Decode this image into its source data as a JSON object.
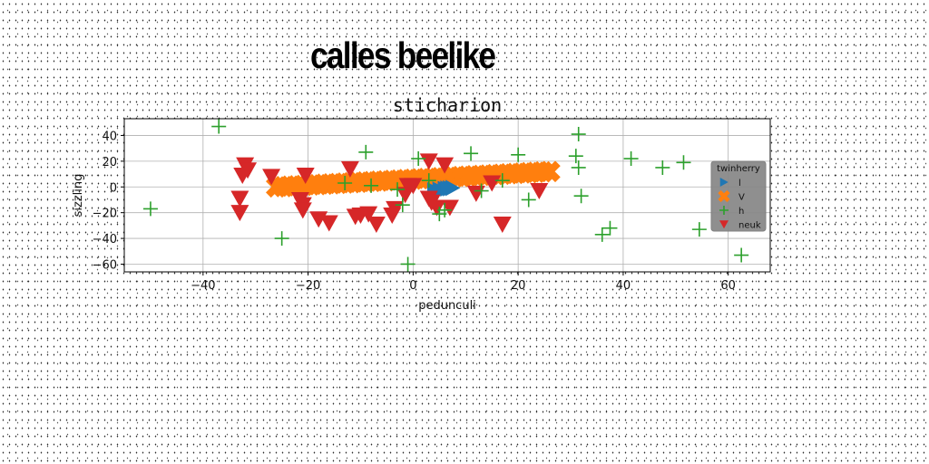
{
  "header": {
    "title": "calles beelike"
  },
  "chart_data": {
    "type": "scatter",
    "title": "sticharion",
    "xlabel": "pedunculi",
    "ylabel": "sizzling",
    "xlim": [
      -55,
      68
    ],
    "ylim": [
      -66,
      53
    ],
    "xticks": [
      -40,
      -20,
      0,
      20,
      40,
      60
    ],
    "yticks": [
      -60,
      -40,
      -20,
      0,
      20,
      40
    ],
    "grid": true,
    "legend": {
      "title": "twinherry",
      "placement": "right"
    },
    "series": [
      {
        "name": "l",
        "marker": "triangle-right",
        "color": "#1f77b4",
        "x": [
          4,
          5,
          6,
          7,
          7.5,
          6.5
        ],
        "y": [
          -2.5,
          -2,
          -1.5,
          -1,
          -0.8,
          -1.2
        ]
      },
      {
        "name": "V",
        "marker": "thick-x",
        "color": "#ff7f0e",
        "x": [
          -26,
          -22,
          -18,
          -14,
          -10,
          -6,
          -2,
          2,
          6,
          10,
          14,
          18,
          22,
          26
        ],
        "y": [
          0,
          1,
          2,
          3,
          4,
          5,
          6,
          7,
          7.5,
          8,
          9,
          10,
          11,
          12
        ]
      },
      {
        "name": "h",
        "marker": "plus",
        "color": "#2ca02c",
        "x": [
          -37,
          -50,
          -25,
          -13,
          -9,
          -8,
          -3,
          -2,
          -1,
          1,
          3,
          5,
          6,
          11,
          13,
          17,
          20,
          22,
          31,
          31.5,
          31.5,
          32,
          36,
          37.5,
          41.5,
          47.5,
          51.5,
          54.5,
          62.5
        ],
        "y": [
          47,
          -17,
          -40,
          3,
          27,
          1,
          -2,
          -14,
          -60,
          22,
          5,
          -21,
          -18,
          26,
          -3,
          5,
          25,
          -10,
          24,
          15,
          41,
          -7,
          -37,
          -32,
          22,
          15,
          19,
          -33,
          -53
        ]
      },
      {
        "name": "neuk",
        "marker": "triangle-down",
        "color": "#d62728",
        "x": [
          -33,
          -32,
          -31.5,
          -32.5,
          -33,
          -27,
          -21.5,
          -21,
          -21,
          -20.5,
          -18,
          -16,
          -12,
          -11,
          -10,
          -8.5,
          -7,
          -4,
          -3.5,
          -1,
          -1.5,
          0,
          3,
          3,
          3.5,
          4.5,
          6,
          7,
          12,
          15,
          17,
          24
        ],
        "y": [
          -20,
          17,
          13,
          9,
          -9,
          8,
          -10,
          -14,
          -18,
          9,
          -25,
          -28,
          14,
          -23,
          -22,
          -21,
          -29,
          -22,
          -17,
          1,
          -6,
          1,
          20,
          -9,
          -12,
          -16,
          17,
          -16,
          -5,
          3,
          -29,
          -3
        ]
      }
    ]
  }
}
